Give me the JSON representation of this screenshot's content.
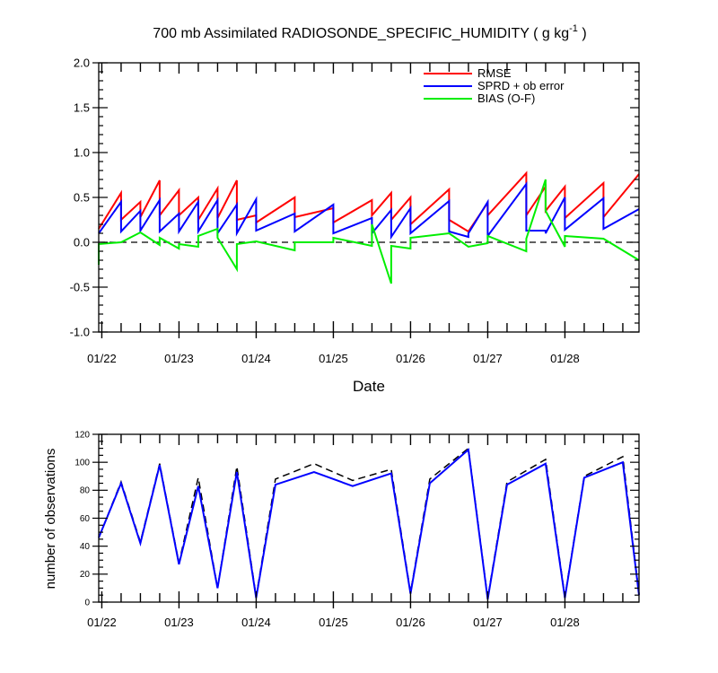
{
  "chart_data": [
    {
      "type": "line",
      "title": "700 mb Assimilated RADIOSONDE_SPECIFIC_HUMIDITY ( g kg",
      "title_exponent": "-1",
      "title_suffix": " )",
      "xlabel": "Date",
      "ylabel": "",
      "xlim": [
        21.96,
        28.96
      ],
      "ylim": [
        -1.0,
        2.0
      ],
      "x_tick_labels": [
        "01/22",
        "01/23",
        "01/24",
        "01/25",
        "01/26",
        "01/27",
        "01/28"
      ],
      "x_tick_values": [
        22,
        23,
        24,
        25,
        26,
        27,
        28
      ],
      "y_tick_labels": [
        "-1.0",
        "-0.5",
        "0.0",
        "0.5",
        "1.0",
        "1.5",
        "2.0"
      ],
      "y_tick_values": [
        -1.0,
        -0.5,
        0.0,
        0.5,
        1.0,
        1.5,
        2.0
      ],
      "zero_line": "dashed",
      "legend_position": "top-right",
      "series": [
        {
          "name": "RMSE",
          "color": "#ff0000",
          "points": [
            [
              21.96,
              0.15
            ],
            [
              22.25,
              0.55
            ],
            [
              22.25,
              0.25
            ],
            [
              22.5,
              0.45
            ],
            [
              22.5,
              0.28
            ],
            [
              22.75,
              0.69
            ],
            [
              22.75,
              0.3
            ],
            [
              23.0,
              0.58
            ],
            [
              23.0,
              0.3
            ],
            [
              23.25,
              0.5
            ],
            [
              23.25,
              0.25
            ],
            [
              23.5,
              0.6
            ],
            [
              23.5,
              0.27
            ],
            [
              23.75,
              0.69
            ],
            [
              23.75,
              0.25
            ],
            [
              24.0,
              0.3
            ],
            [
              24.0,
              0.22
            ],
            [
              24.5,
              0.5
            ],
            [
              24.5,
              0.28
            ],
            [
              25.0,
              0.38
            ],
            [
              25.0,
              0.22
            ],
            [
              25.5,
              0.47
            ],
            [
              25.5,
              0.3
            ],
            [
              25.75,
              0.55
            ],
            [
              25.75,
              0.25
            ],
            [
              26.0,
              0.5
            ],
            [
              26.0,
              0.2
            ],
            [
              26.5,
              0.59
            ],
            [
              26.5,
              0.25
            ],
            [
              26.75,
              0.12
            ],
            [
              26.75,
              0.12
            ],
            [
              27.0,
              0.44
            ],
            [
              27.0,
              0.3
            ],
            [
              27.5,
              0.77
            ],
            [
              27.5,
              0.3
            ],
            [
              27.75,
              0.62
            ],
            [
              27.75,
              0.35
            ],
            [
              28.0,
              0.62
            ],
            [
              28.0,
              0.27
            ],
            [
              28.5,
              0.66
            ],
            [
              28.5,
              0.28
            ],
            [
              28.96,
              0.76
            ]
          ]
        },
        {
          "name": "SPRD + ob error",
          "color": "#0000ff",
          "points": [
            [
              21.96,
              0.1
            ],
            [
              22.25,
              0.45
            ],
            [
              22.25,
              0.12
            ],
            [
              22.5,
              0.35
            ],
            [
              22.5,
              0.13
            ],
            [
              22.75,
              0.47
            ],
            [
              22.75,
              0.12
            ],
            [
              23.0,
              0.32
            ],
            [
              23.0,
              0.12
            ],
            [
              23.25,
              0.45
            ],
            [
              23.25,
              0.12
            ],
            [
              23.5,
              0.47
            ],
            [
              23.5,
              0.1
            ],
            [
              23.75,
              0.42
            ],
            [
              23.75,
              0.1
            ],
            [
              24.0,
              0.48
            ],
            [
              24.0,
              0.13
            ],
            [
              24.5,
              0.32
            ],
            [
              24.5,
              0.12
            ],
            [
              25.0,
              0.42
            ],
            [
              25.0,
              0.1
            ],
            [
              25.5,
              0.27
            ],
            [
              25.5,
              0.1
            ],
            [
              25.75,
              0.36
            ],
            [
              25.75,
              0.06
            ],
            [
              26.0,
              0.38
            ],
            [
              26.0,
              0.1
            ],
            [
              26.5,
              0.46
            ],
            [
              26.5,
              0.12
            ],
            [
              26.75,
              0.06
            ],
            [
              26.75,
              0.1
            ],
            [
              27.0,
              0.45
            ],
            [
              27.0,
              0.07
            ],
            [
              27.5,
              0.65
            ],
            [
              27.5,
              0.13
            ],
            [
              27.75,
              0.13
            ],
            [
              27.75,
              0.1
            ],
            [
              28.0,
              0.5
            ],
            [
              28.0,
              0.14
            ],
            [
              28.5,
              0.49
            ],
            [
              28.5,
              0.15
            ],
            [
              28.96,
              0.37
            ]
          ]
        },
        {
          "name": "BIAS (O-F)",
          "color": "#00ee00",
          "points": [
            [
              21.96,
              -0.25
            ],
            [
              21.96,
              -0.02
            ],
            [
              22.25,
              0.0
            ],
            [
              22.5,
              0.11
            ],
            [
              22.75,
              -0.03
            ],
            [
              22.75,
              0.05
            ],
            [
              23.0,
              -0.07
            ],
            [
              23.0,
              -0.02
            ],
            [
              23.25,
              -0.05
            ],
            [
              23.25,
              0.07
            ],
            [
              23.5,
              0.15
            ],
            [
              23.5,
              0.05
            ],
            [
              23.75,
              -0.3
            ],
            [
              23.75,
              -0.02
            ],
            [
              24.0,
              0.01
            ],
            [
              24.5,
              -0.09
            ],
            [
              24.5,
              0.0
            ],
            [
              25.0,
              0.0
            ],
            [
              25.0,
              0.05
            ],
            [
              25.5,
              -0.04
            ],
            [
              25.5,
              0.2
            ],
            [
              25.75,
              -0.46
            ],
            [
              25.75,
              -0.04
            ],
            [
              26.0,
              -0.07
            ],
            [
              26.0,
              0.05
            ],
            [
              26.5,
              0.1
            ],
            [
              26.75,
              -0.05
            ],
            [
              27.0,
              -0.01
            ],
            [
              27.0,
              0.07
            ],
            [
              27.5,
              -0.1
            ],
            [
              27.5,
              0.04
            ],
            [
              27.75,
              0.7
            ],
            [
              27.75,
              0.35
            ],
            [
              28.0,
              -0.05
            ],
            [
              28.0,
              0.07
            ],
            [
              28.5,
              0.04
            ],
            [
              28.96,
              -0.2
            ]
          ]
        }
      ]
    },
    {
      "type": "line",
      "title": "",
      "xlabel": "",
      "ylabel": "number of observations",
      "xlim": [
        21.96,
        28.96
      ],
      "ylim": [
        0,
        120
      ],
      "x_tick_labels": [
        "01/22",
        "01/23",
        "01/24",
        "01/25",
        "01/26",
        "01/27",
        "01/28"
      ],
      "x_tick_values": [
        22,
        23,
        24,
        25,
        26,
        27,
        28
      ],
      "y_tick_labels": [
        "0",
        "20",
        "40",
        "60",
        "80",
        "100",
        "120"
      ],
      "y_tick_values": [
        0,
        20,
        40,
        60,
        80,
        100,
        120
      ],
      "series": [
        {
          "name": "",
          "style": "dashed",
          "color": "#000000",
          "points": [
            [
              21.96,
              46
            ],
            [
              22.25,
              86
            ],
            [
              22.5,
              43
            ],
            [
              22.75,
              99
            ],
            [
              23.0,
              28
            ],
            [
              23.25,
              89
            ],
            [
              23.5,
              10
            ],
            [
              23.75,
              97
            ],
            [
              24.0,
              4
            ],
            [
              24.25,
              88
            ],
            [
              24.75,
              99
            ],
            [
              25.25,
              87
            ],
            [
              25.75,
              95
            ],
            [
              26.0,
              7
            ],
            [
              26.25,
              88
            ],
            [
              26.75,
              110
            ],
            [
              27.0,
              3
            ],
            [
              27.25,
              86
            ],
            [
              27.75,
              102
            ],
            [
              28.0,
              4
            ],
            [
              28.25,
              90
            ],
            [
              28.75,
              104
            ],
            [
              28.96,
              6
            ]
          ]
        },
        {
          "name": "",
          "style": "solid",
          "color": "#0000ff",
          "points": [
            [
              21.96,
              46
            ],
            [
              22.25,
              85
            ],
            [
              22.5,
              42
            ],
            [
              22.75,
              98
            ],
            [
              23.0,
              27
            ],
            [
              23.25,
              83
            ],
            [
              23.5,
              10
            ],
            [
              23.75,
              93
            ],
            [
              24.0,
              3
            ],
            [
              24.25,
              84
            ],
            [
              24.75,
              93
            ],
            [
              25.25,
              83
            ],
            [
              25.75,
              92
            ],
            [
              26.0,
              6
            ],
            [
              26.25,
              85
            ],
            [
              26.75,
              109
            ],
            [
              27.0,
              2
            ],
            [
              27.25,
              84
            ],
            [
              27.75,
              99
            ],
            [
              28.0,
              3
            ],
            [
              28.25,
              89
            ],
            [
              28.75,
              100
            ],
            [
              28.96,
              5
            ]
          ]
        }
      ]
    }
  ]
}
